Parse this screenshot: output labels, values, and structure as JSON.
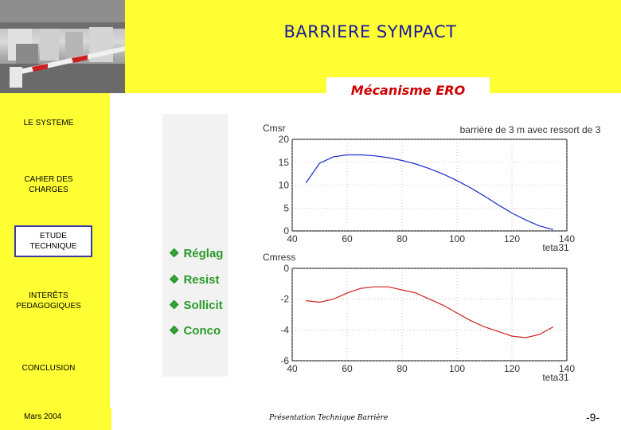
{
  "header": {
    "title": "BARRIERE SYMPACT",
    "subtitle": "Mécanisme ERO"
  },
  "sidebar": {
    "items": [
      {
        "label": "LE SYSTEME"
      },
      {
        "label_line1": "CAHIER DES",
        "label_line2": "CHARGES"
      },
      {
        "label_line1": "ETUDE",
        "label_line2": "TECHNIQUE",
        "active": true
      },
      {
        "label_line1": "INTERÊTS",
        "label_line2": "PEDAGOGIQUES"
      },
      {
        "label": "CONCLUSION"
      }
    ]
  },
  "bullets": [
    {
      "text": "Réglag"
    },
    {
      "text": "Resist"
    },
    {
      "text": "Sollicit"
    },
    {
      "text": "Conco"
    }
  ],
  "colors": {
    "band": "#ffff33",
    "title": "#1a1a9a",
    "subtitle": "#cc0000",
    "bullet": "#2a9a2a",
    "curve_top": "#1a2ad0",
    "curve_bottom": "#d02020"
  },
  "footer": {
    "date": "Mars 2004",
    "caption": "Présentation Technique Barrière",
    "page": "-9-"
  },
  "chart_data": [
    {
      "type": "line",
      "title": "barrière de 3 m avec ressort de 3",
      "ylabel": "Cmsr",
      "xlabel": "teta31",
      "xlim": [
        40,
        140
      ],
      "ylim": [
        0,
        20
      ],
      "xticks": [
        40,
        60,
        80,
        100,
        120,
        140
      ],
      "yticks": [
        0,
        5,
        10,
        15,
        20
      ],
      "grid": true,
      "series": [
        {
          "x": [
            45,
            50,
            55,
            60,
            65,
            70,
            75,
            80,
            85,
            90,
            95,
            100,
            105,
            110,
            115,
            120,
            125,
            130,
            135
          ],
          "y": [
            10.5,
            14.8,
            16.2,
            16.6,
            16.6,
            16.4,
            16.0,
            15.4,
            14.6,
            13.6,
            12.4,
            11.0,
            9.4,
            7.6,
            5.7,
            3.9,
            2.4,
            1.1,
            0.3
          ]
        }
      ]
    },
    {
      "type": "line",
      "ylabel": "Cmress",
      "xlabel": "teta31",
      "xlim": [
        40,
        140
      ],
      "ylim": [
        -6,
        0
      ],
      "xticks": [
        40,
        60,
        80,
        100,
        120,
        140
      ],
      "yticks": [
        0,
        -2,
        -4,
        -6
      ],
      "grid": true,
      "series": [
        {
          "x": [
            45,
            50,
            55,
            60,
            65,
            70,
            75,
            80,
            85,
            90,
            95,
            100,
            105,
            110,
            115,
            120,
            125,
            130,
            135
          ],
          "y": [
            -2.1,
            -2.2,
            -2.0,
            -1.6,
            -1.3,
            -1.2,
            -1.2,
            -1.4,
            -1.6,
            -2.0,
            -2.4,
            -2.9,
            -3.4,
            -3.8,
            -4.1,
            -4.4,
            -4.5,
            -4.3,
            -3.8
          ]
        }
      ]
    }
  ]
}
